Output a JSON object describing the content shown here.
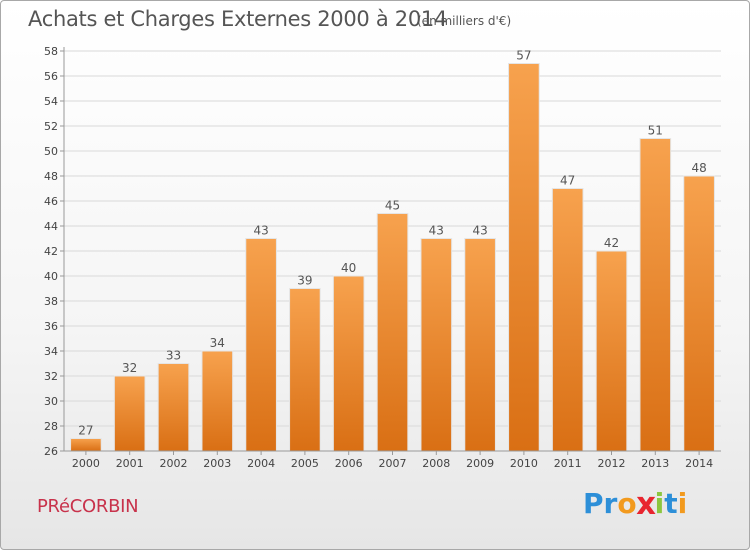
{
  "header": {
    "title": "Achats et Charges Externes 2000 à 2014",
    "unit": "(en milliers d'€)"
  },
  "commune": "PRéCORBIN",
  "logo": {
    "letters": [
      "P",
      "r",
      "o",
      "x",
      "i",
      "t",
      "i"
    ],
    "colors": [
      "#2d8fd8",
      "#2d8fd8",
      "#f29a1e",
      "#e8252f",
      "#8cc63f",
      "#2d8fd8",
      "#f29a1e"
    ]
  },
  "chart_data": {
    "type": "bar",
    "title": "Achats et Charges Externes 2000 à 2014",
    "subtitle": "(en milliers d'€)",
    "categories": [
      "2000",
      "2001",
      "2002",
      "2003",
      "2004",
      "2005",
      "2006",
      "2007",
      "2008",
      "2009",
      "2010",
      "2011",
      "2012",
      "2013",
      "2014"
    ],
    "values": [
      27,
      32,
      33,
      34,
      43,
      39,
      40,
      45,
      43,
      43,
      57,
      47,
      42,
      51,
      48
    ],
    "ylim": [
      26,
      58
    ],
    "yticks": [
      26,
      28,
      30,
      32,
      34,
      36,
      38,
      40,
      42,
      44,
      46,
      48,
      50,
      52,
      54,
      56,
      58
    ],
    "grid": true,
    "bar_color": "#f0963c",
    "data_labels": true
  }
}
